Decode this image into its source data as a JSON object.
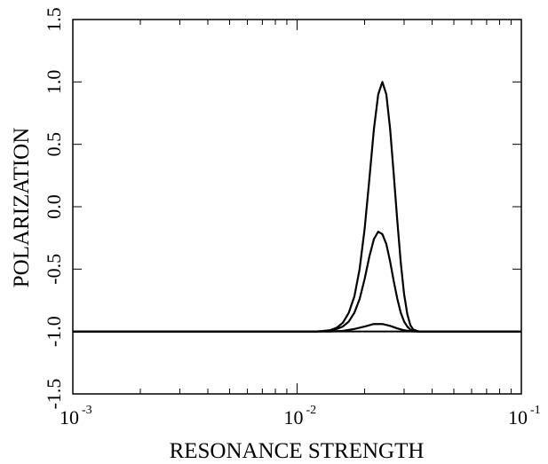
{
  "chart_data": {
    "type": "line",
    "title": "",
    "xlabel": "RESONANCE STRENGTH",
    "ylabel": "POLARIZATION",
    "x_scale": "log",
    "xlim": [
      0.001,
      0.1
    ],
    "ylim": [
      -1.5,
      1.5
    ],
    "x_tick_labels": [
      {
        "base": "10",
        "exp": "-3"
      },
      {
        "base": "10",
        "exp": "-2"
      },
      {
        "base": "10",
        "exp": "-1"
      }
    ],
    "y_ticks": [
      "-1.5",
      "-1.0",
      "-0.5",
      "0.0",
      "0.5",
      "1.0",
      "1.5"
    ],
    "grid": false,
    "legend": "none",
    "line_color": "#000000",
    "series": [
      {
        "x": [
          0.001,
          0.012,
          0.013,
          0.014,
          0.015,
          0.016,
          0.017,
          0.018,
          0.019,
          0.02,
          0.021,
          0.022,
          0.023,
          0.024,
          0.025,
          0.026,
          0.027,
          0.028,
          0.029,
          0.03,
          0.031,
          0.032,
          0.033,
          0.035,
          0.1
        ],
        "y": [
          -1.0,
          -1.0,
          -0.996,
          -0.99,
          -0.97,
          -0.93,
          -0.85,
          -0.72,
          -0.5,
          -0.18,
          0.22,
          0.62,
          0.9,
          1.0,
          0.9,
          0.62,
          0.25,
          -0.12,
          -0.45,
          -0.7,
          -0.86,
          -0.95,
          -0.985,
          -1.0,
          -1.0
        ]
      },
      {
        "x": [
          0.001,
          0.012,
          0.013,
          0.014,
          0.015,
          0.016,
          0.017,
          0.018,
          0.019,
          0.02,
          0.021,
          0.022,
          0.023,
          0.024,
          0.025,
          0.026,
          0.027,
          0.028,
          0.029,
          0.03,
          0.031,
          0.032,
          0.033,
          0.035,
          0.1
        ],
        "y": [
          -1.0,
          -1.0,
          -0.998,
          -0.993,
          -0.98,
          -0.96,
          -0.92,
          -0.85,
          -0.74,
          -0.58,
          -0.4,
          -0.26,
          -0.2,
          -0.22,
          -0.3,
          -0.44,
          -0.6,
          -0.74,
          -0.85,
          -0.92,
          -0.96,
          -0.985,
          -0.995,
          -1.0,
          -1.0
        ]
      },
      {
        "x": [
          0.001,
          0.014,
          0.016,
          0.018,
          0.02,
          0.022,
          0.024,
          0.026,
          0.028,
          0.03,
          0.032,
          0.034,
          0.1
        ],
        "y": [
          -1.0,
          -1.0,
          -0.995,
          -0.98,
          -0.96,
          -0.94,
          -0.94,
          -0.955,
          -0.975,
          -0.99,
          -0.998,
          -1.0,
          -1.0
        ]
      }
    ]
  }
}
